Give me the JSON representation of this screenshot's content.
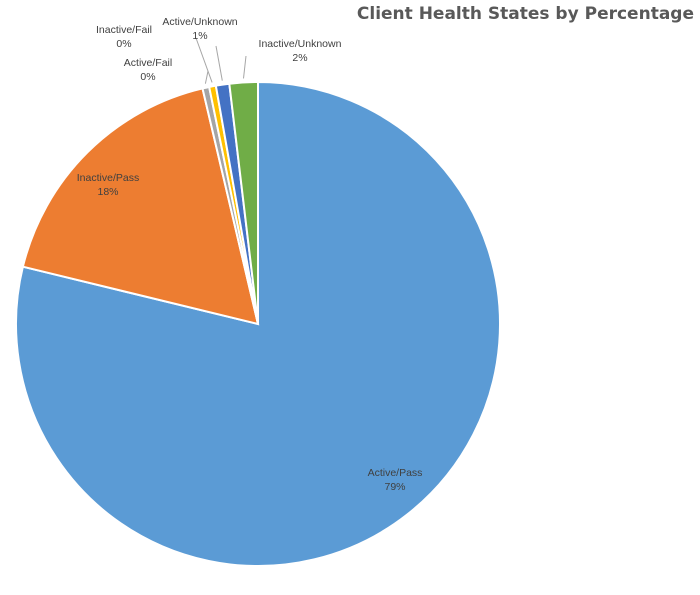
{
  "chart_data": {
    "type": "pie",
    "title": "Client Health States by Percentage",
    "slices": [
      {
        "name": "Active/Pass",
        "value": 79.2,
        "label": "79%",
        "color": "#5B9BD5"
      },
      {
        "name": "Inactive/Pass",
        "value": 17.6,
        "label": "18%",
        "color": "#ED7D31"
      },
      {
        "name": "Active/Fail",
        "value": 0.0,
        "label": "0%",
        "color": "#A5A5A5"
      },
      {
        "name": "Inactive/Fail",
        "value": 0.4,
        "label": "0%",
        "color": "#FFC000"
      },
      {
        "name": "Active/Unknown",
        "value": 0.9,
        "label": "1%",
        "color": "#4472C4"
      },
      {
        "name": "Inactive/Unknown",
        "value": 1.9,
        "label": "2%",
        "color": "#70AD47"
      }
    ],
    "legend": "none",
    "data_labels": "category-and-percentage"
  }
}
